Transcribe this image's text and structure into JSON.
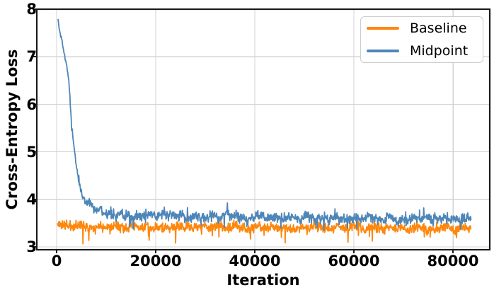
{
  "chart_data": {
    "type": "line",
    "title": "",
    "xlabel": "Iteration",
    "ylabel": "Cross-Entropy Loss",
    "xlim": [
      -4000,
      87400
    ],
    "ylim": [
      2.94,
      8.0
    ],
    "xticks": [
      0,
      20000,
      40000,
      60000,
      80000
    ],
    "xtick_labels": [
      "0",
      "20000",
      "40000",
      "60000",
      "80000"
    ],
    "yticks": [
      3,
      4,
      5,
      6,
      7,
      8
    ],
    "ytick_labels": [
      "3",
      "4",
      "5",
      "6",
      "7",
      "8"
    ],
    "grid": true,
    "grid_color": "#d3d3d3",
    "spine_color": "#1a1a1a",
    "legend_position": "upper right",
    "line_width": 1.8,
    "series": [
      {
        "name": "Baseline",
        "color": "#fe870d",
        "seed": 11,
        "x_start": 200,
        "x_end": 83600,
        "step": 70,
        "trend": [
          [
            200,
            3.47
          ],
          [
            2000,
            3.45
          ],
          [
            5000,
            3.44
          ],
          [
            10000,
            3.43
          ],
          [
            20000,
            3.42
          ],
          [
            40000,
            3.41
          ],
          [
            60000,
            3.4
          ],
          [
            83600,
            3.39
          ]
        ],
        "noise_amp": [
          [
            200,
            0.07
          ],
          [
            5000,
            0.068
          ],
          [
            83600,
            0.065
          ]
        ],
        "spike_prob": 0.035,
        "spike_down": 0.28,
        "spike_up": 0.14
      },
      {
        "name": "Midpoint",
        "color": "#4e86b8",
        "seed": 5,
        "x_start": 300,
        "x_end": 83600,
        "step": 70,
        "trend": [
          [
            300,
            7.78
          ],
          [
            500,
            7.6
          ],
          [
            700,
            7.48
          ],
          [
            900,
            7.4
          ],
          [
            1100,
            7.33
          ],
          [
            1300,
            7.18
          ],
          [
            1600,
            7.02
          ],
          [
            1800,
            6.92
          ],
          [
            2000,
            6.86
          ],
          [
            2200,
            6.7
          ],
          [
            2400,
            6.58
          ],
          [
            2600,
            6.3
          ],
          [
            2800,
            5.95
          ],
          [
            3000,
            5.62
          ],
          [
            3300,
            5.3
          ],
          [
            3600,
            5.05
          ],
          [
            3900,
            4.8
          ],
          [
            4200,
            4.55
          ],
          [
            4500,
            4.38
          ],
          [
            4900,
            4.18
          ],
          [
            5400,
            4.04
          ],
          [
            6000,
            3.95
          ],
          [
            7000,
            3.86
          ],
          [
            8000,
            3.8
          ],
          [
            9000,
            3.76
          ],
          [
            10000,
            3.73
          ],
          [
            12000,
            3.7
          ],
          [
            15000,
            3.67
          ],
          [
            20000,
            3.65
          ],
          [
            30000,
            3.63
          ],
          [
            40000,
            3.62
          ],
          [
            50000,
            3.61
          ],
          [
            60000,
            3.6
          ],
          [
            70000,
            3.6
          ],
          [
            83600,
            3.58
          ]
        ],
        "noise_amp": [
          [
            300,
            0.028
          ],
          [
            3000,
            0.035
          ],
          [
            6000,
            0.055
          ],
          [
            9000,
            0.075
          ],
          [
            83600,
            0.075
          ]
        ],
        "spike_prob": 0.03,
        "spike_down": 0.22,
        "spike_up": 0.18
      }
    ]
  }
}
